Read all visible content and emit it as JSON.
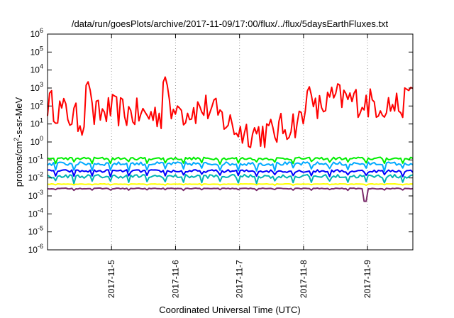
{
  "chart_data": {
    "type": "line",
    "title": "/data/run/goesPlots/archive/2017-11-09/17:00/flux/../flux/5daysEarthFluxes.txt",
    "xlabel": "Coordinated Universal Time (UTC)",
    "ylabel_parts": {
      "base": "protons/cm",
      "sup": "2",
      "tail": "-s-sr-MeV"
    },
    "yscale": "log",
    "ylim_exp": [
      -6,
      6
    ],
    "ytick_base": "10",
    "ytick_exponents": [
      "-6",
      "-5",
      "-4",
      "-3",
      "-2",
      "-1",
      "0",
      "1",
      "2",
      "3",
      "4",
      "5",
      "6"
    ],
    "xlim": [
      "2017-11-04 00:00",
      "2017-11-09 17:00"
    ],
    "xticks": [
      {
        "label": "2017-11-5",
        "date": "2017-11-05 00:00"
      },
      {
        "label": "2017-11-6",
        "date": "2017-11-06 00:00"
      },
      {
        "label": "2017-11-7",
        "date": "2017-11-07 00:00"
      },
      {
        "label": "2017-11-8",
        "date": "2017-11-08 00:00"
      },
      {
        "label": "2017-11-9",
        "date": "2017-11-09 00:00"
      }
    ],
    "grid": "dotted vertical at x ticks",
    "series": [
      {
        "color": "#ff0000",
        "base_log10": 1.3,
        "noise": 0.9,
        "x": [
          "2017-11-04 00:00",
          "2017-11-04 12:00",
          "2017-11-05 00:00",
          "2017-11-05 12:00",
          "2017-11-06 00:00",
          "2017-11-06 12:00",
          "2017-11-07 00:00",
          "2017-11-07 12:00",
          "2017-11-08 00:00",
          "2017-11-08 12:00",
          "2017-11-09 00:00",
          "2017-11-09 12:00",
          "2017-11-09 17:00"
        ],
        "values": [
          150.0,
          15.0,
          60.0,
          30.0,
          40.0,
          80.0,
          4.0,
          3.0,
          20.0,
          300.0,
          150.0,
          100.0,
          200.0
        ],
        "spikes": [
          {
            "x": "2017-11-04 15:00",
            "value": 3000.0
          },
          {
            "x": "2017-11-05 20:00",
            "value": 5000.0
          },
          {
            "x": "2017-11-06 01:00",
            "value": 150.0
          },
          {
            "x": "2017-11-08 02:00",
            "value": 1500.0
          },
          {
            "x": "2017-11-09 16:00",
            "value": 1500.0
          }
        ]
      },
      {
        "color": "#00ee00",
        "base_log10": -0.95,
        "noise": 0.15
      },
      {
        "color": "#00aaff",
        "base_log10": -1.25,
        "noise": 0.2
      },
      {
        "color": "#0000ff",
        "base_log10": -1.65,
        "noise": 0.15
      },
      {
        "color": "#00b4b4",
        "base_log10": -1.95,
        "noise": 0.2
      },
      {
        "color": "#ffff00",
        "base_log10": -2.35,
        "noise": 0.03
      },
      {
        "color": "#7a2a6a",
        "base_log10": -2.6,
        "noise": 0.05,
        "dips": [
          {
            "x": "2017-11-08 23:00",
            "value": 0.0005
          }
        ]
      }
    ]
  }
}
